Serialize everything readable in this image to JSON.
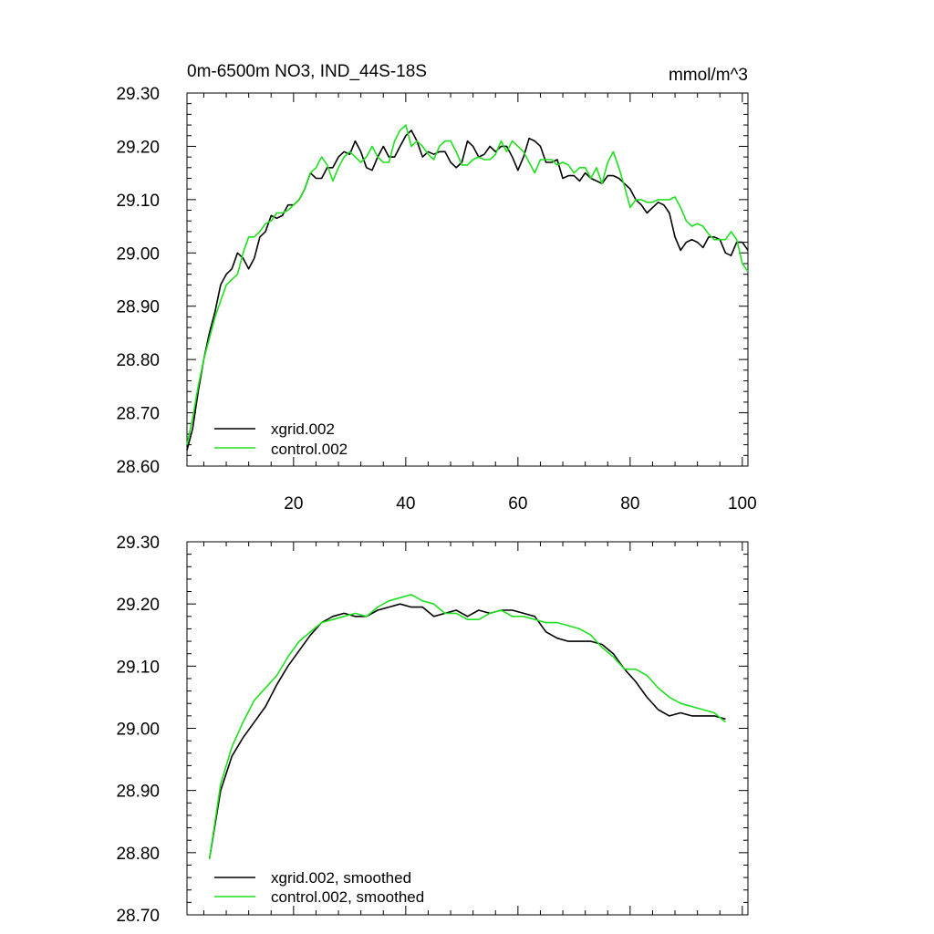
{
  "chart_data": [
    {
      "type": "line",
      "title": "0m-6500m NO3, IND_44S-18S",
      "units": "mmol/m^3",
      "xlabel": "",
      "ylabel": "",
      "xlim": [
        1,
        101
      ],
      "ylim": [
        28.6,
        29.3
      ],
      "xticks": [
        20,
        40,
        60,
        80,
        100
      ],
      "xtick_labels": [
        "20",
        "40",
        "60",
        "80",
        "100"
      ],
      "yticks": [
        28.6,
        28.7,
        28.8,
        28.9,
        29.0,
        29.1,
        29.2,
        29.3
      ],
      "ytick_labels": [
        "28.60",
        "28.70",
        "28.80",
        "28.90",
        "29.00",
        "29.10",
        "29.20",
        "29.30"
      ],
      "legend_position": "bottom-left",
      "series": [
        {
          "name": "xgrid.002",
          "color": "#000000",
          "x": [
            1,
            2,
            3,
            4,
            5,
            6,
            7,
            8,
            9,
            10,
            11,
            12,
            13,
            14,
            15,
            16,
            17,
            18,
            19,
            20,
            21,
            22,
            23,
            24,
            25,
            26,
            27,
            28,
            29,
            30,
            31,
            32,
            33,
            34,
            35,
            36,
            37,
            38,
            39,
            40,
            41,
            42,
            43,
            44,
            45,
            46,
            47,
            48,
            49,
            50,
            51,
            52,
            53,
            54,
            55,
            56,
            57,
            58,
            59,
            60,
            61,
            62,
            63,
            64,
            65,
            66,
            67,
            68,
            69,
            70,
            71,
            72,
            73,
            74,
            75,
            76,
            77,
            78,
            79,
            80,
            81,
            82,
            83,
            84,
            85,
            86,
            87,
            88,
            89,
            90,
            91,
            92,
            93,
            94,
            95,
            96,
            97,
            98,
            99,
            100,
            101
          ],
          "values": [
            28.63,
            28.67,
            28.74,
            28.8,
            28.85,
            28.89,
            28.94,
            28.96,
            28.97,
            29.0,
            28.99,
            28.97,
            28.99,
            29.03,
            29.04,
            29.07,
            29.065,
            29.07,
            29.09,
            29.09,
            29.1,
            29.12,
            29.15,
            29.14,
            29.14,
            29.16,
            29.16,
            29.18,
            29.19,
            29.185,
            29.21,
            29.19,
            29.16,
            29.155,
            29.18,
            29.2,
            29.18,
            29.18,
            29.2,
            29.22,
            29.23,
            29.21,
            29.18,
            29.19,
            29.185,
            29.19,
            29.19,
            29.17,
            29.16,
            29.17,
            29.21,
            29.2,
            29.18,
            29.185,
            29.2,
            29.19,
            29.2,
            29.2,
            29.18,
            29.155,
            29.18,
            29.215,
            29.21,
            29.2,
            29.17,
            29.17,
            29.175,
            29.14,
            29.145,
            29.145,
            29.135,
            29.15,
            29.14,
            29.135,
            29.13,
            29.145,
            29.145,
            29.14,
            29.13,
            29.12,
            29.1,
            29.09,
            29.075,
            29.085,
            29.095,
            29.09,
            29.075,
            29.03,
            29.005,
            29.02,
            29.025,
            29.02,
            29.01,
            29.03,
            29.03,
            29.025,
            29.0,
            28.995,
            29.02,
            29.02,
            29.005
          ]
        },
        {
          "name": "control.002",
          "color": "#1ee01e",
          "x": [
            1,
            2,
            3,
            4,
            5,
            6,
            7,
            8,
            9,
            10,
            11,
            12,
            13,
            14,
            15,
            16,
            17,
            18,
            19,
            20,
            21,
            22,
            23,
            24,
            25,
            26,
            27,
            28,
            29,
            30,
            31,
            32,
            33,
            34,
            35,
            36,
            37,
            38,
            39,
            40,
            41,
            42,
            43,
            44,
            45,
            46,
            47,
            48,
            49,
            50,
            51,
            52,
            53,
            54,
            55,
            56,
            57,
            58,
            59,
            60,
            61,
            62,
            63,
            64,
            65,
            66,
            67,
            68,
            69,
            70,
            71,
            72,
            73,
            74,
            75,
            76,
            77,
            78,
            79,
            80,
            81,
            82,
            83,
            84,
            85,
            86,
            87,
            88,
            89,
            90,
            91,
            92,
            93,
            94,
            95,
            96,
            97,
            98,
            99,
            100,
            101
          ],
          "values": [
            28.64,
            28.69,
            28.75,
            28.8,
            28.84,
            28.88,
            28.91,
            28.94,
            28.95,
            28.96,
            29.0,
            29.03,
            29.03,
            29.04,
            29.055,
            29.06,
            29.075,
            29.075,
            29.08,
            29.09,
            29.1,
            29.12,
            29.15,
            29.16,
            29.18,
            29.165,
            29.135,
            29.16,
            29.18,
            29.19,
            29.18,
            29.17,
            29.18,
            29.2,
            29.18,
            29.17,
            29.17,
            29.21,
            29.23,
            29.24,
            29.2,
            29.21,
            29.2,
            29.185,
            29.175,
            29.2,
            29.21,
            29.21,
            29.19,
            29.165,
            29.165,
            29.175,
            29.18,
            29.175,
            29.175,
            29.185,
            29.21,
            29.19,
            29.21,
            29.2,
            29.19,
            29.17,
            29.15,
            29.175,
            29.175,
            29.175,
            29.165,
            29.17,
            29.165,
            29.15,
            29.16,
            29.16,
            29.14,
            29.16,
            29.13,
            29.17,
            29.19,
            29.16,
            29.125,
            29.085,
            29.1,
            29.1,
            29.095,
            29.095,
            29.1,
            29.1,
            29.1,
            29.105,
            29.085,
            29.06,
            29.05,
            29.055,
            29.05,
            29.035,
            29.025,
            29.025,
            29.025,
            29.04,
            29.025,
            28.98,
            28.965
          ]
        }
      ]
    },
    {
      "type": "line",
      "title": "",
      "xlabel": "",
      "ylabel": "",
      "xlim": [
        1,
        101
      ],
      "ylim": [
        28.7,
        29.3
      ],
      "xticks": [
        20,
        40,
        60,
        80,
        100
      ],
      "xtick_labels": [
        "",
        "",
        "",
        "",
        ""
      ],
      "yticks": [
        28.7,
        28.8,
        28.9,
        29.0,
        29.1,
        29.2,
        29.3
      ],
      "ytick_labels": [
        "28.70",
        "28.80",
        "28.90",
        "29.00",
        "29.10",
        "29.20",
        "29.30"
      ],
      "legend_position": "bottom-left",
      "series": [
        {
          "name": "xgrid.002, smoothed",
          "color": "#000000",
          "x": [
            5,
            7,
            9,
            11,
            13,
            15,
            17,
            19,
            21,
            23,
            25,
            27,
            29,
            31,
            33,
            35,
            37,
            39,
            41,
            43,
            45,
            47,
            49,
            51,
            53,
            55,
            57,
            59,
            61,
            63,
            65,
            67,
            69,
            71,
            73,
            75,
            77,
            79,
            81,
            83,
            85,
            87,
            89,
            91,
            93,
            95,
            97
          ],
          "values": [
            28.79,
            28.9,
            28.955,
            28.985,
            29.01,
            29.035,
            29.07,
            29.1,
            29.125,
            29.15,
            29.17,
            29.18,
            29.185,
            29.18,
            29.18,
            29.19,
            29.195,
            29.2,
            29.195,
            29.195,
            29.18,
            29.185,
            29.19,
            29.18,
            29.19,
            29.185,
            29.19,
            29.19,
            29.185,
            29.18,
            29.155,
            29.145,
            29.14,
            29.14,
            29.14,
            29.135,
            29.12,
            29.095,
            29.075,
            29.05,
            29.03,
            29.02,
            29.025,
            29.02,
            29.02,
            29.02,
            29.015
          ]
        },
        {
          "name": "control.002, smoothed",
          "color": "#1ee01e",
          "x": [
            5,
            7,
            9,
            11,
            13,
            15,
            17,
            19,
            21,
            23,
            25,
            27,
            29,
            31,
            33,
            35,
            37,
            39,
            41,
            43,
            45,
            47,
            49,
            51,
            53,
            55,
            57,
            59,
            61,
            63,
            65,
            67,
            69,
            71,
            73,
            75,
            77,
            79,
            81,
            83,
            85,
            87,
            89,
            91,
            93,
            95,
            97
          ],
          "values": [
            28.79,
            28.91,
            28.97,
            29.01,
            29.045,
            29.065,
            29.085,
            29.115,
            29.14,
            29.155,
            29.17,
            29.175,
            29.18,
            29.185,
            29.18,
            29.195,
            29.205,
            29.21,
            29.215,
            29.205,
            29.2,
            29.185,
            29.185,
            29.175,
            29.175,
            29.185,
            29.19,
            29.18,
            29.18,
            29.175,
            29.17,
            29.17,
            29.165,
            29.16,
            29.15,
            29.13,
            29.115,
            29.095,
            29.095,
            29.085,
            29.065,
            29.05,
            29.04,
            29.035,
            29.03,
            29.025,
            29.01
          ]
        }
      ]
    }
  ]
}
